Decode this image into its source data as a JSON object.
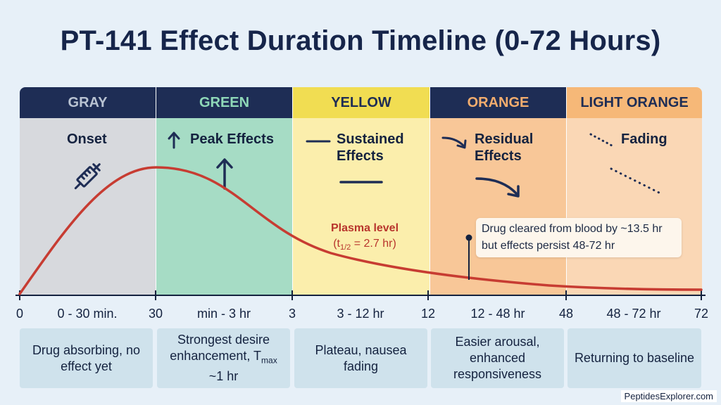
{
  "title": "PT-141 Effect Duration Timeline (0-72 Hours)",
  "phases": [
    {
      "color_name": "GRAY",
      "stage": "Onset",
      "icon": "syringe-icon",
      "range_label": "0 - 30 min.",
      "description": "Drug absorbing, no effect yet",
      "header_bg": "#1e2d55",
      "header_fg": "#b9c3d2",
      "body_bg": "#d7d9dd"
    },
    {
      "color_name": "GREEN",
      "stage": "Peak Effects",
      "icon": "arrow-up-icon",
      "range_label": "min - 3 hr",
      "description_pre": "Strongest desire enhancement, T",
      "description_sub": "max",
      "description_post": " ~1 hr",
      "header_bg": "#1e2d55",
      "header_fg": "#8fd8b8",
      "body_bg": "#a6dcc5"
    },
    {
      "color_name": "YELLOW",
      "stage": "Sustained Effects",
      "icon": "dash-icon",
      "range_label": "3 - 12 hr",
      "description": "Plateau, nausea fading",
      "header_bg": "#f1dd52",
      "header_fg": "#1e2d55",
      "body_bg": "#fbeeac"
    },
    {
      "color_name": "ORANGE",
      "stage": "Residual Effects",
      "icon": "curved-arrow-icon",
      "range_label": "12 - 48 hr",
      "description": "Easier arousal, enhanced responsiveness",
      "header_bg": "#1e2d55",
      "header_fg": "#f3ad6e",
      "body_bg": "#f8c798"
    },
    {
      "color_name": "LIGHT ORANGE",
      "stage": "Fading",
      "icon": "dotted-line-icon",
      "range_label": "48 - 72 hr",
      "description": "Returning to baseline",
      "header_bg": "#f6b878",
      "header_fg": "#1e2d55",
      "body_bg": "#fad7b5"
    }
  ],
  "axis_ticks": [
    "0",
    "30",
    "3",
    "12",
    "48",
    "72"
  ],
  "plasma": {
    "line1": "Plasma level",
    "pre": "(t",
    "sub": "1/2",
    "post": " = 2.7 hr)"
  },
  "callout": "Drug cleared from blood by ~13.5 hr but effects persist 48-72 hr",
  "footer": "PeptidesExplorer.com",
  "colors": {
    "curve": "#c73c32",
    "axis": "#14223f",
    "background": "#e7f0f8"
  }
}
